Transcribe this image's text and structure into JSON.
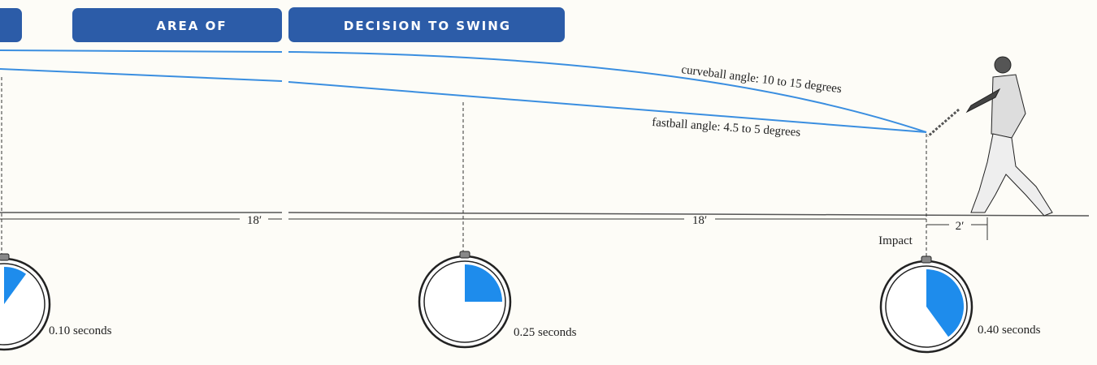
{
  "header": {
    "tabs": [
      "AREA OF",
      "DECISION TO SWING"
    ]
  },
  "angles": {
    "curveball": "curveball angle: 10 to 15 degrees",
    "fastball": "fastball angle: 4.5 to 5 degrees"
  },
  "distances": [
    "18′",
    "18′",
    "2′"
  ],
  "impact": "Impact",
  "stopwatches": [
    {
      "seconds": 0.1,
      "label": "0.10 seconds"
    },
    {
      "seconds": 0.25,
      "label": "0.25 seconds"
    },
    {
      "seconds": 0.4,
      "label": "0.40 seconds"
    }
  ]
}
